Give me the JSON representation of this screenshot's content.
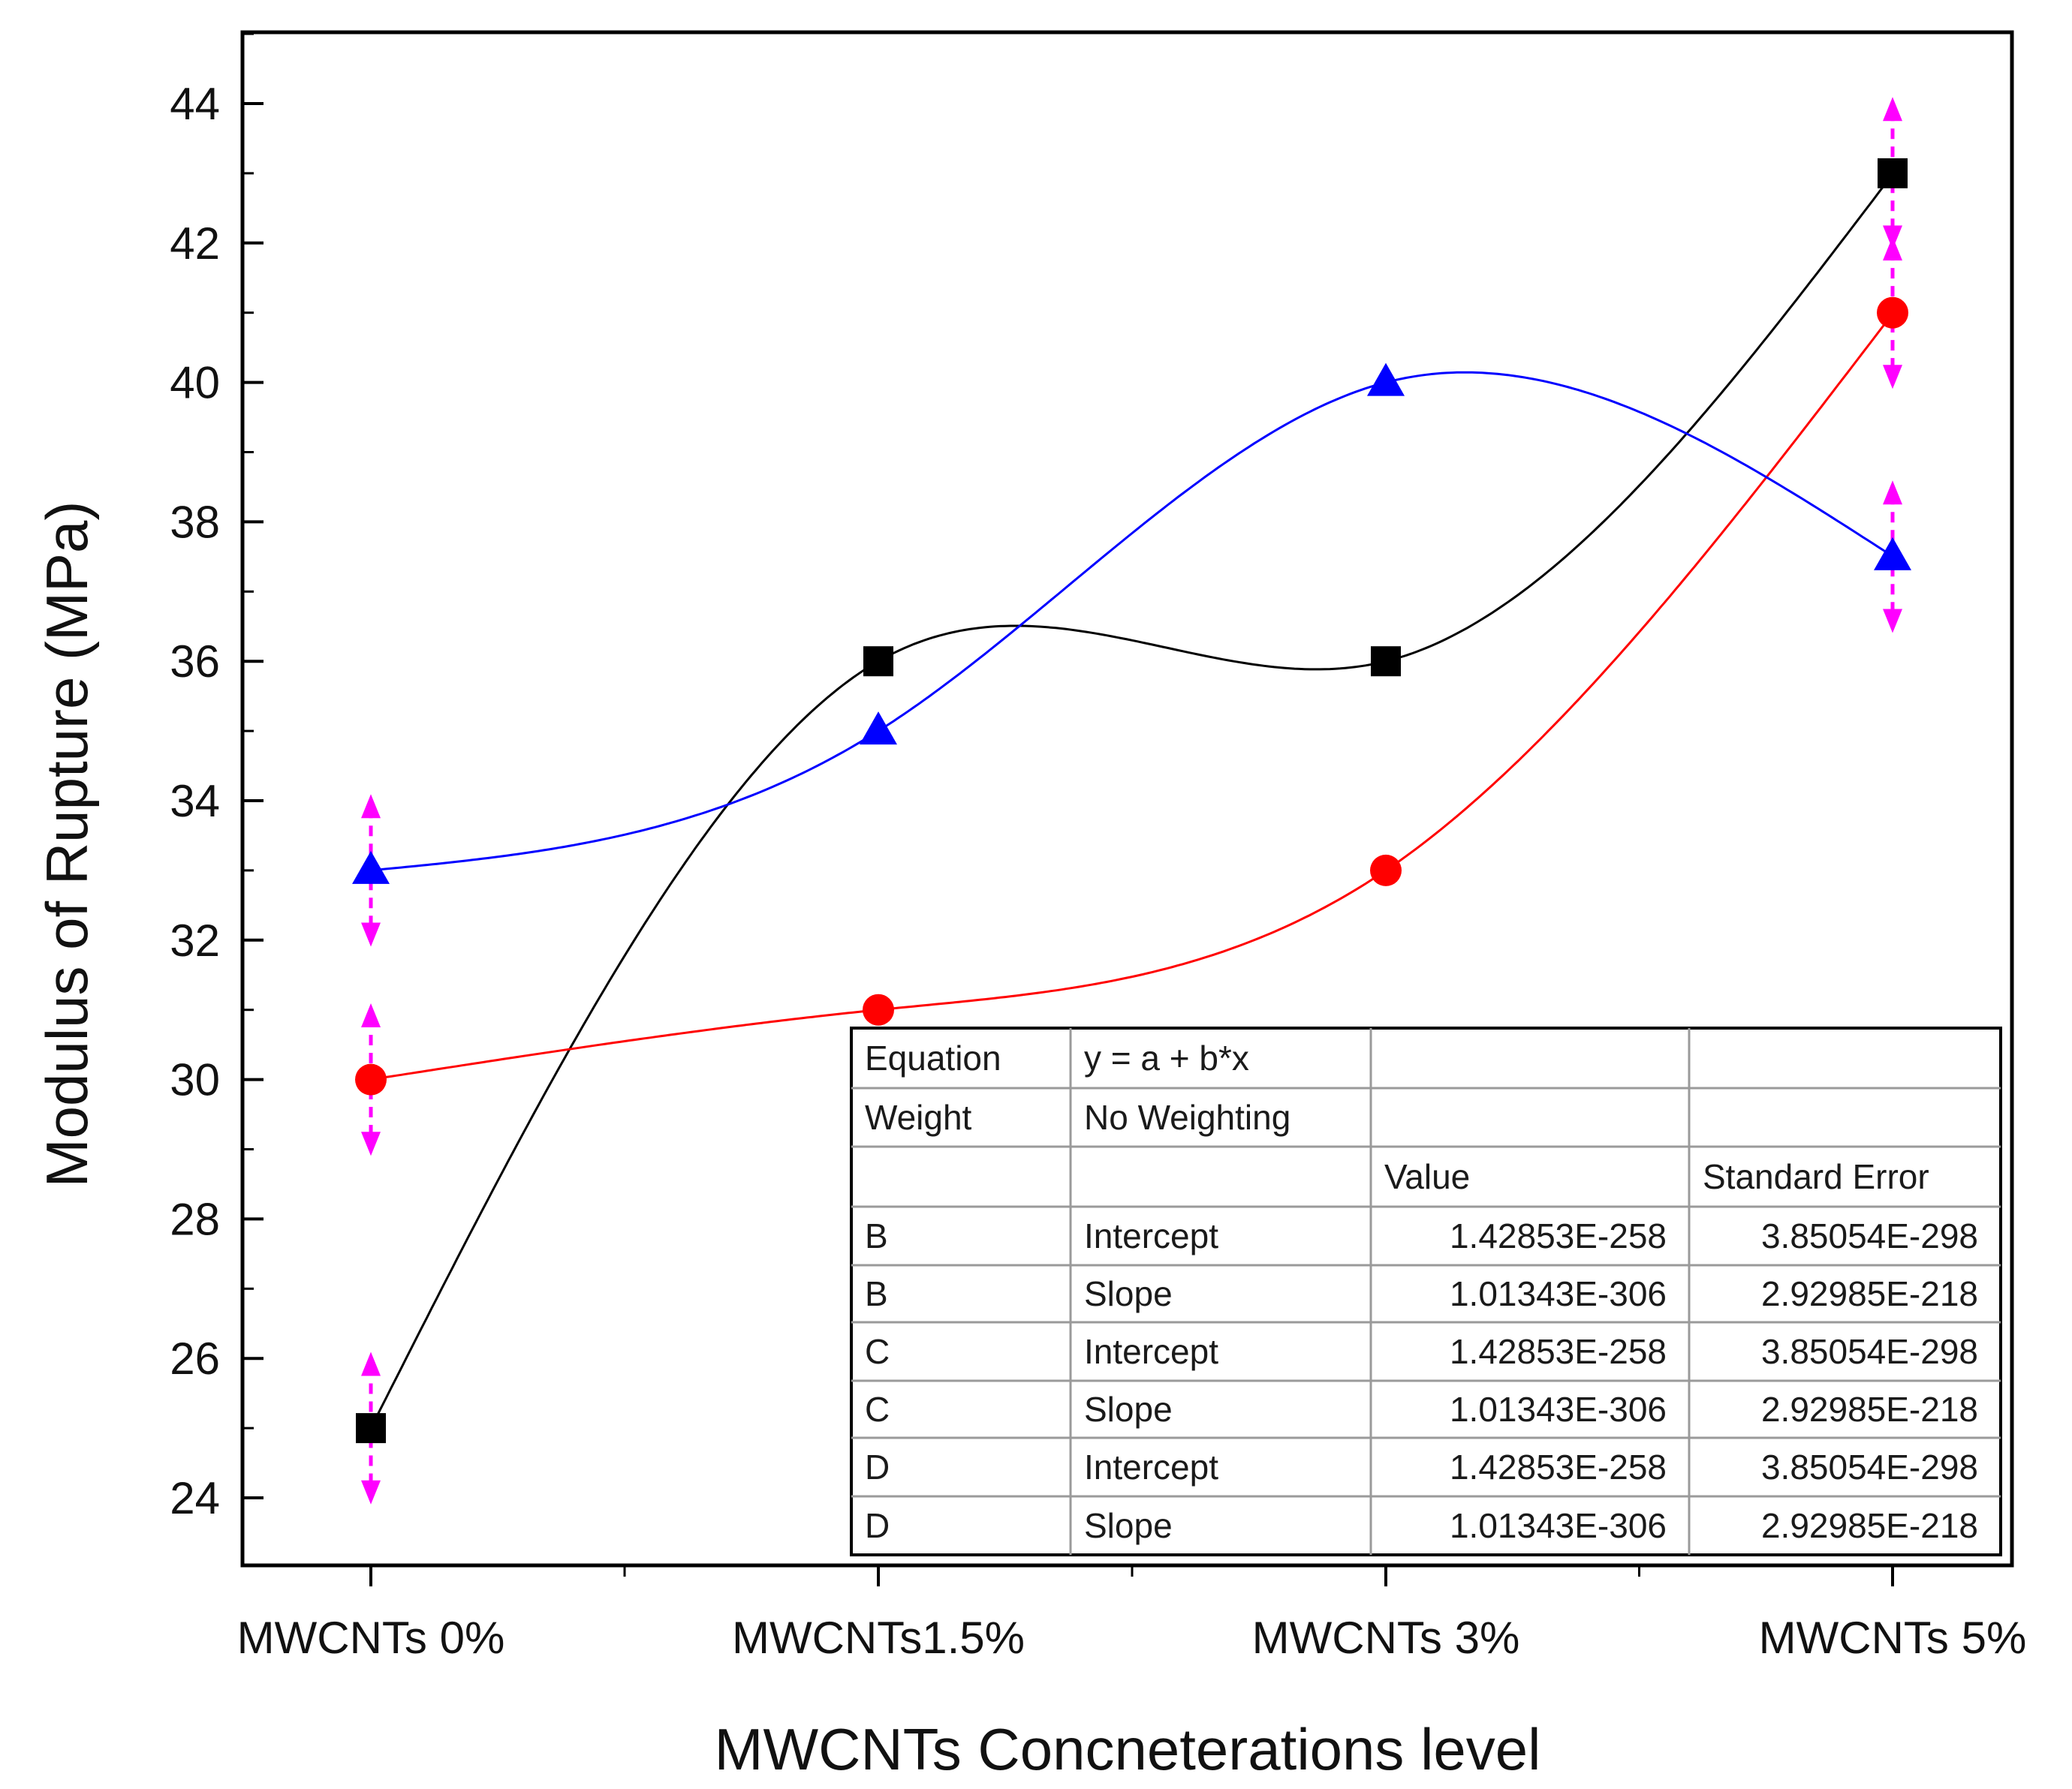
{
  "chart_data": {
    "type": "line",
    "title": "",
    "xlabel": "MWCNTs Concneterations level",
    "ylabel": "Modulus of Rupture (MPa)",
    "categories": [
      "MWCNTs 0%",
      "MWCNTs1.5%",
      "MWCNTs 3%",
      "MWCNTs 5%"
    ],
    "ylim": [
      23,
      45
    ],
    "yticks": [
      24,
      26,
      28,
      30,
      32,
      34,
      36,
      38,
      40,
      42,
      44
    ],
    "grid": false,
    "series": [
      {
        "name": "B",
        "color": "#000000",
        "marker": "square",
        "values": [
          25,
          36,
          36,
          43
        ],
        "errors": [
          0.9,
          0,
          0,
          0.9
        ]
      },
      {
        "name": "C",
        "color": "#ff0000",
        "marker": "circle",
        "values": [
          30,
          31,
          33,
          41
        ],
        "errors": [
          0.9,
          0,
          0,
          0.9
        ]
      },
      {
        "name": "D",
        "color": "#0000ff",
        "marker": "triangle",
        "values": [
          33,
          35,
          40,
          37.5
        ],
        "errors": [
          0.9,
          0,
          0,
          0.9
        ]
      }
    ],
    "error_bar_color": "#ff00ff",
    "fit_table": {
      "rows": [
        [
          "Equation",
          "y = a + b*x",
          "",
          ""
        ],
        [
          "Weight",
          "No Weighting",
          "",
          ""
        ],
        [
          "",
          "",
          "Value",
          "Standard Error"
        ],
        [
          "B",
          "Intercept",
          "1.42853E-258",
          "3.85054E-298"
        ],
        [
          "B",
          "Slope",
          "1.01343E-306",
          "2.92985E-218"
        ],
        [
          "C",
          "Intercept",
          "1.42853E-258",
          "3.85054E-298"
        ],
        [
          "C",
          "Slope",
          "1.01343E-306",
          "2.92985E-218"
        ],
        [
          "D",
          "Intercept",
          "1.42853E-258",
          "3.85054E-298"
        ],
        [
          "D",
          "Slope",
          "1.01343E-306",
          "2.92985E-218"
        ]
      ]
    }
  }
}
